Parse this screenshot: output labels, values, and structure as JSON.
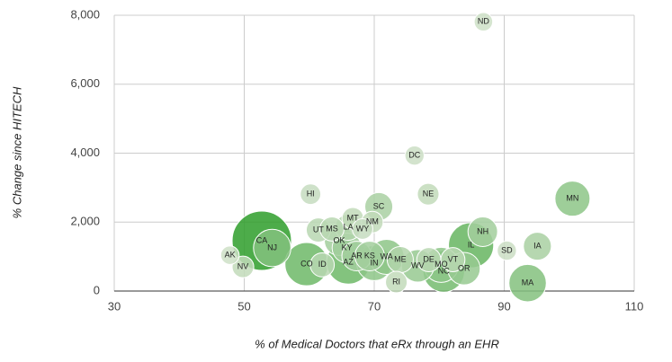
{
  "chart_data": {
    "type": "bubble",
    "x_label": "% of Medical Doctors that eRx through an EHR",
    "y_label": "% Change since HITECH",
    "xlim": [
      30,
      110
    ],
    "xticks": [
      30,
      50,
      70,
      90,
      110
    ],
    "ylim": [
      0,
      8000
    ],
    "yticks": [
      0,
      {
        "value": 2000,
        "label": "2,000"
      },
      {
        "value": 4000,
        "label": "4,000"
      },
      {
        "value": 6000,
        "label": "6,000"
      },
      {
        "value": 8000,
        "label": "8,000"
      }
    ],
    "grid": true,
    "color_scale": [
      "#ecece4",
      "#2e9e2a"
    ],
    "points": [
      {
        "label": "ND",
        "x": 86.8,
        "y": 7810,
        "size": 0.5
      },
      {
        "label": "DC",
        "x": 76.2,
        "y": 3930,
        "size": 0.6
      },
      {
        "label": "HI",
        "x": 60.2,
        "y": 2810,
        "size": 0.8
      },
      {
        "label": "NE",
        "x": 78.3,
        "y": 2810,
        "size": 1
      },
      {
        "label": "MN",
        "x": 100.5,
        "y": 2680,
        "size": 5
      },
      {
        "label": "SC",
        "x": 70.7,
        "y": 2450,
        "size": 2.5
      },
      {
        "label": "MT",
        "x": 66.7,
        "y": 2110,
        "size": 1
      },
      {
        "label": "NM",
        "x": 69.7,
        "y": 2000,
        "size": 1
      },
      {
        "label": "UT",
        "x": 61.4,
        "y": 1770,
        "size": 1.5
      },
      {
        "label": "MS",
        "x": 63.5,
        "y": 1800,
        "size": 1.5
      },
      {
        "label": "LA",
        "x": 66.0,
        "y": 1850,
        "size": 2
      },
      {
        "label": "WY",
        "x": 68.2,
        "y": 1800,
        "size": 0.8
      },
      {
        "label": "NH",
        "x": 86.7,
        "y": 1720,
        "size": 3
      },
      {
        "label": "OK",
        "x": 64.6,
        "y": 1460,
        "size": 3
      },
      {
        "label": "CA",
        "x": 52.7,
        "y": 1460,
        "size": 20
      },
      {
        "label": "NJ",
        "x": 54.3,
        "y": 1250,
        "size": 6
      },
      {
        "label": "KY",
        "x": 65.8,
        "y": 1250,
        "size": 3
      },
      {
        "label": "AK",
        "x": 47.8,
        "y": 1040,
        "size": 0.5
      },
      {
        "label": "NV",
        "x": 49.8,
        "y": 700,
        "size": 1
      },
      {
        "label": "IL",
        "x": 84.9,
        "y": 1330,
        "size": 10
      },
      {
        "label": "SD",
        "x": 90.4,
        "y": 1170,
        "size": 0.6
      },
      {
        "label": "IA",
        "x": 95.1,
        "y": 1300,
        "size": 2.5
      },
      {
        "label": "CO",
        "x": 59.6,
        "y": 780,
        "size": 9
      },
      {
        "label": "ID",
        "x": 62.0,
        "y": 760,
        "size": 1.5
      },
      {
        "label": "AZ",
        "x": 66.0,
        "y": 830,
        "size": 9
      },
      {
        "label": "AR",
        "x": 67.3,
        "y": 1015,
        "size": 3
      },
      {
        "label": "KS",
        "x": 69.3,
        "y": 1015,
        "size": 3
      },
      {
        "label": "IN",
        "x": 70.0,
        "y": 810,
        "size": 5
      },
      {
        "label": "WA",
        "x": 71.9,
        "y": 990,
        "size": 5
      },
      {
        "label": "ME",
        "x": 74.0,
        "y": 910,
        "size": 2
      },
      {
        "label": "WV",
        "x": 76.7,
        "y": 730,
        "size": 4
      },
      {
        "label": "DE",
        "x": 78.4,
        "y": 910,
        "size": 1.5
      },
      {
        "label": "MO",
        "x": 80.3,
        "y": 760,
        "size": 5
      },
      {
        "label": "VT",
        "x": 82.1,
        "y": 910,
        "size": 1.5
      },
      {
        "label": "NC",
        "x": 80.7,
        "y": 570,
        "size": 8
      },
      {
        "label": "OR",
        "x": 83.8,
        "y": 650,
        "size": 4
      },
      {
        "label": "RI",
        "x": 73.4,
        "y": 260,
        "size": 1
      },
      {
        "label": "MA",
        "x": 93.6,
        "y": 230,
        "size": 6
      }
    ]
  }
}
